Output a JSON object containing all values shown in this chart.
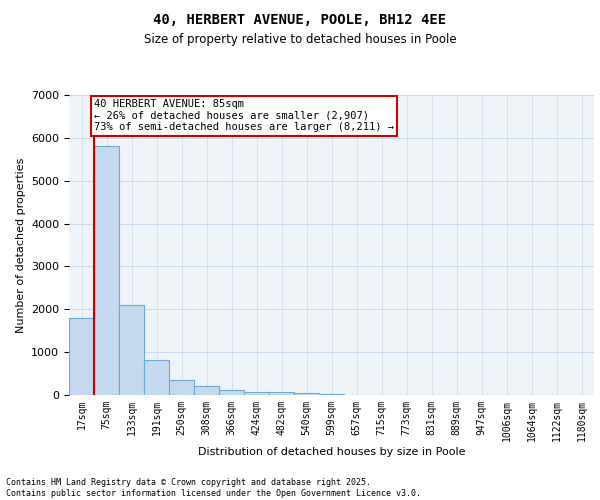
{
  "title": "40, HERBERT AVENUE, POOLE, BH12 4EE",
  "subtitle": "Size of property relative to detached houses in Poole",
  "xlabel": "Distribution of detached houses by size in Poole",
  "ylabel": "Number of detached properties",
  "bar_color": "#c5d9ee",
  "bar_edge_color": "#6aaad4",
  "grid_color": "#c8d8ea",
  "bg_color": "#eef3f8",
  "vline_color": "#cc0000",
  "annotation_text": "40 HERBERT AVENUE: 85sqm\n← 26% of detached houses are smaller (2,907)\n73% of semi-detached houses are larger (8,211) →",
  "annotation_box_color": "#ffffff",
  "annotation_box_edge": "#cc0000",
  "categories": [
    "17sqm",
    "75sqm",
    "133sqm",
    "191sqm",
    "250sqm",
    "308sqm",
    "366sqm",
    "424sqm",
    "482sqm",
    "540sqm",
    "599sqm",
    "657sqm",
    "715sqm",
    "773sqm",
    "831sqm",
    "889sqm",
    "947sqm",
    "1006sqm",
    "1064sqm",
    "1122sqm",
    "1180sqm"
  ],
  "values": [
    1800,
    5800,
    2100,
    820,
    350,
    210,
    120,
    80,
    70,
    50,
    35,
    10,
    10,
    8,
    5,
    5,
    3,
    2,
    2,
    1,
    1
  ],
  "ylim": [
    0,
    7000
  ],
  "yticks": [
    0,
    1000,
    2000,
    3000,
    4000,
    5000,
    6000,
    7000
  ],
  "footer_line1": "Contains HM Land Registry data © Crown copyright and database right 2025.",
  "footer_line2": "Contains public sector information licensed under the Open Government Licence v3.0."
}
